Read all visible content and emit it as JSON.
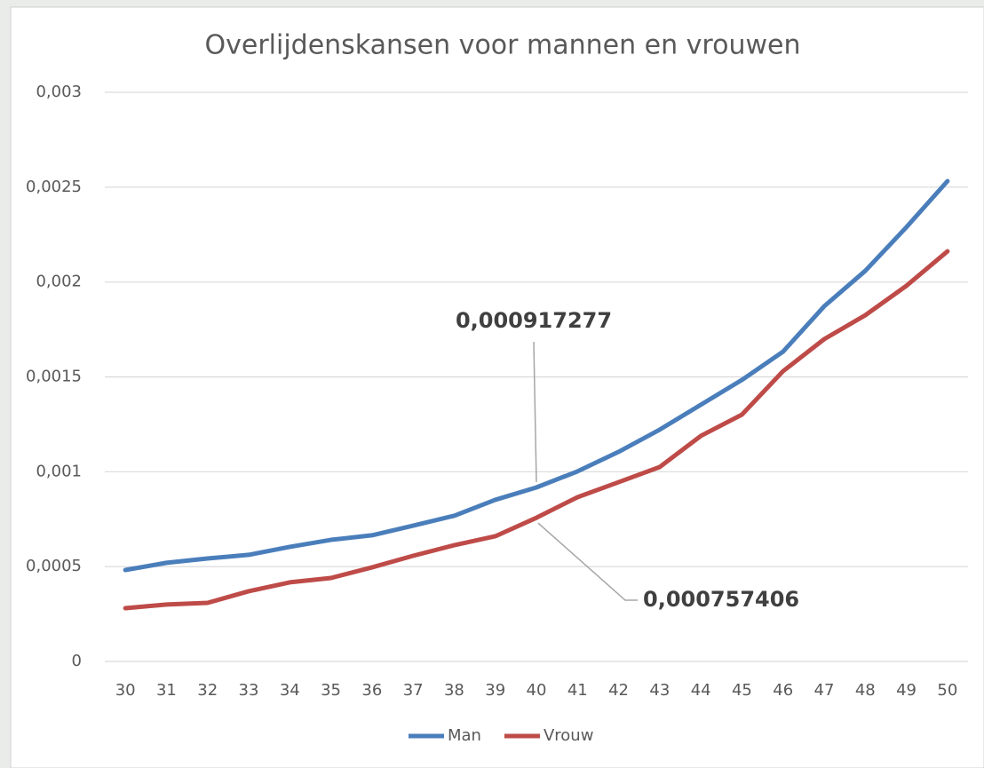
{
  "chart_data": {
    "type": "line",
    "title": "Overlijdenskansen voor mannen en vrouwen",
    "categories": [
      "30",
      "31",
      "32",
      "33",
      "34",
      "35",
      "36",
      "37",
      "38",
      "39",
      "40",
      "41",
      "42",
      "43",
      "44",
      "45",
      "46",
      "47",
      "48",
      "49",
      "50"
    ],
    "series": [
      {
        "name": "Man",
        "color": "#4a7ebb",
        "values": [
          0.000482,
          0.00052,
          0.000543,
          0.000562,
          0.000604,
          0.000641,
          0.000665,
          0.000716,
          0.000768,
          0.000852,
          0.000917277,
          0.001002,
          0.001105,
          0.001222,
          0.001353,
          0.001484,
          0.001633,
          0.001872,
          0.002059,
          0.002289,
          0.002532
        ],
        "value_labels": [
          null,
          null,
          null,
          null,
          null,
          null,
          null,
          null,
          null,
          null,
          "0,000917277",
          null,
          null,
          null,
          null,
          null,
          null,
          null,
          null,
          null,
          null
        ]
      },
      {
        "name": "Vrouw",
        "color": "#be4b48",
        "values": [
          0.000281,
          0.0003,
          0.000309,
          0.00037,
          0.000417,
          0.00044,
          0.000496,
          0.000557,
          0.000613,
          0.00066,
          0.000757406,
          0.000866,
          0.000945,
          0.001025,
          0.001189,
          0.001301,
          0.00153,
          0.001699,
          0.001825,
          0.00198,
          0.002162
        ],
        "value_labels": [
          null,
          null,
          null,
          null,
          null,
          null,
          null,
          null,
          null,
          null,
          "0,000757406",
          null,
          null,
          null,
          null,
          null,
          null,
          null,
          null,
          null,
          null
        ]
      }
    ],
    "ylim": [
      0,
      0.003
    ],
    "yticks": [
      0,
      {
        "value": 0.0005,
        "label": "0,0005"
      },
      {
        "value": 0.001,
        "label": "0,001"
      },
      {
        "value": 0.0015,
        "label": "0,0015"
      },
      {
        "value": 0.002,
        "label": "0,002"
      },
      {
        "value": 0.0025,
        "label": "0,0025"
      },
      {
        "value": 0.003,
        "label": "0,003"
      }
    ],
    "grid": true,
    "legend": "bottom"
  }
}
